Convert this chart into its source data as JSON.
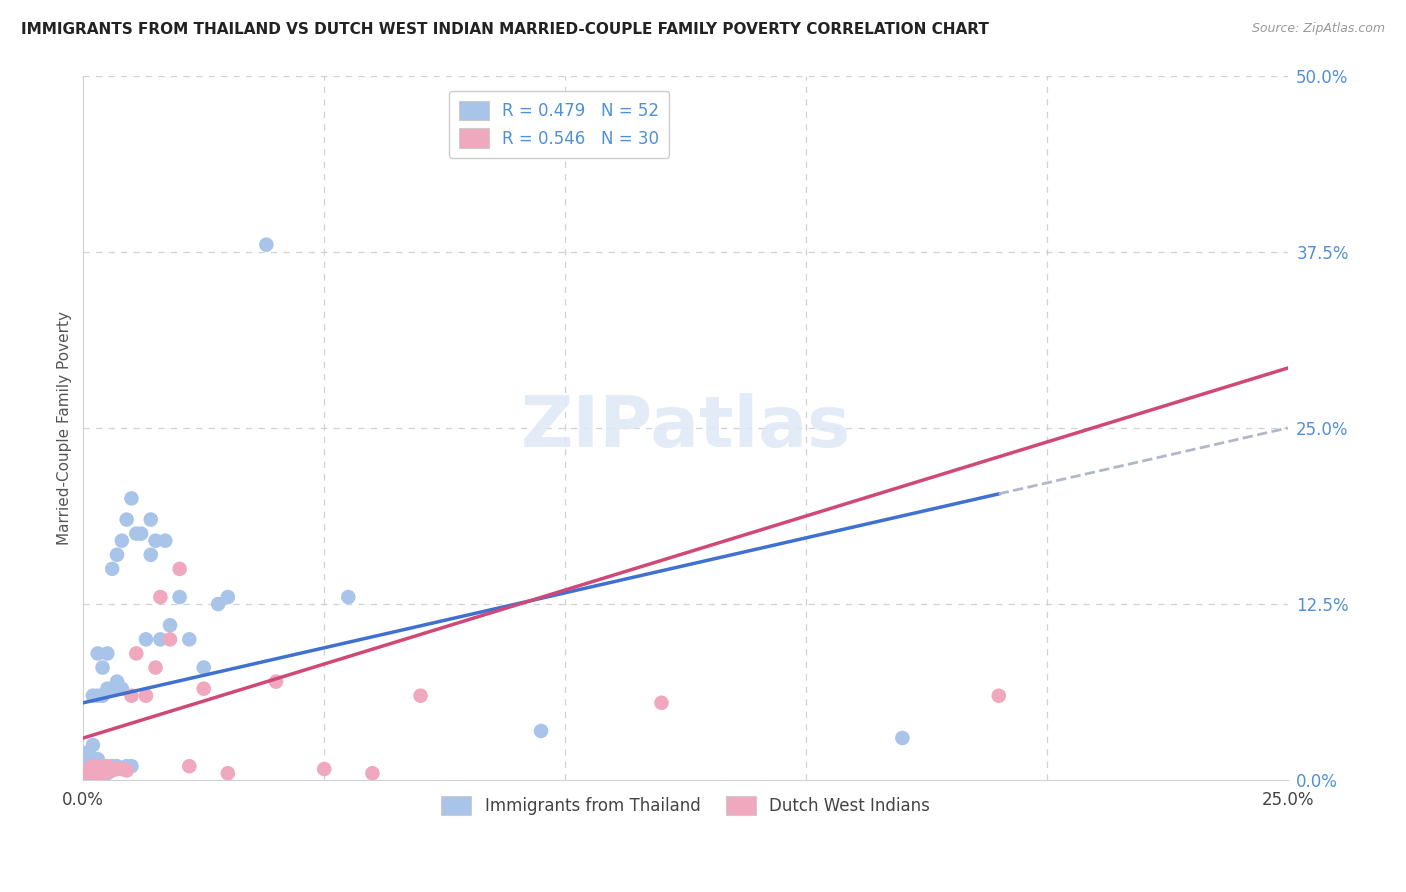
{
  "title": "IMMIGRANTS FROM THAILAND VS DUTCH WEST INDIAN MARRIED-COUPLE FAMILY POVERTY CORRELATION CHART",
  "source": "Source: ZipAtlas.com",
  "ylabel": "Married-Couple Family Poverty",
  "xlim": [
    0.0,
    0.25
  ],
  "ylim": [
    0.0,
    0.5
  ],
  "xticks": [
    0.0,
    0.05,
    0.1,
    0.15,
    0.2,
    0.25
  ],
  "xtick_labels": [
    "0.0%",
    "",
    "",
    "",
    "",
    "25.0%"
  ],
  "ytick_labels_right": [
    "50.0%",
    "37.5%",
    "25.0%",
    "12.5%",
    "0.0%"
  ],
  "yticks_right": [
    0.5,
    0.375,
    0.25,
    0.125,
    0.0
  ],
  "blue_color": "#a8c4e8",
  "pink_color": "#f0a8be",
  "blue_line_color": "#4070d0",
  "pink_line_color": "#d04878",
  "blue_dash_color": "#b0b8c8",
  "background_color": "#ffffff",
  "grid_color": "#d0d0d8",
  "right_axis_color": "#5090d8",
  "thailand_x": [
    0.001,
    0.001,
    0.001,
    0.001,
    0.002,
    0.002,
    0.002,
    0.002,
    0.002,
    0.003,
    0.003,
    0.003,
    0.003,
    0.003,
    0.004,
    0.004,
    0.004,
    0.004,
    0.005,
    0.005,
    0.005,
    0.005,
    0.006,
    0.006,
    0.006,
    0.007,
    0.007,
    0.007,
    0.008,
    0.008,
    0.009,
    0.009,
    0.01,
    0.01,
    0.011,
    0.012,
    0.013,
    0.014,
    0.014,
    0.015,
    0.016,
    0.017,
    0.018,
    0.02,
    0.022,
    0.025,
    0.028,
    0.03,
    0.038,
    0.055,
    0.095,
    0.17
  ],
  "thailand_y": [
    0.005,
    0.01,
    0.015,
    0.02,
    0.005,
    0.008,
    0.012,
    0.025,
    0.06,
    0.005,
    0.01,
    0.015,
    0.06,
    0.09,
    0.005,
    0.01,
    0.06,
    0.08,
    0.005,
    0.01,
    0.065,
    0.09,
    0.01,
    0.065,
    0.15,
    0.01,
    0.07,
    0.16,
    0.065,
    0.17,
    0.01,
    0.185,
    0.01,
    0.2,
    0.175,
    0.175,
    0.1,
    0.16,
    0.185,
    0.17,
    0.1,
    0.17,
    0.11,
    0.13,
    0.1,
    0.08,
    0.125,
    0.13,
    0.38,
    0.13,
    0.035,
    0.03
  ],
  "dutch_x": [
    0.001,
    0.001,
    0.002,
    0.002,
    0.003,
    0.003,
    0.004,
    0.004,
    0.005,
    0.005,
    0.006,
    0.007,
    0.008,
    0.009,
    0.01,
    0.011,
    0.013,
    0.015,
    0.016,
    0.018,
    0.02,
    0.022,
    0.025,
    0.03,
    0.04,
    0.05,
    0.06,
    0.07,
    0.12,
    0.19
  ],
  "dutch_y": [
    0.004,
    0.008,
    0.005,
    0.01,
    0.005,
    0.01,
    0.005,
    0.008,
    0.006,
    0.01,
    0.007,
    0.008,
    0.008,
    0.007,
    0.06,
    0.09,
    0.06,
    0.08,
    0.13,
    0.1,
    0.15,
    0.01,
    0.065,
    0.005,
    0.07,
    0.008,
    0.005,
    0.06,
    0.055,
    0.06
  ],
  "blue_intercept": 0.055,
  "blue_slope": 0.78,
  "pink_intercept": 0.03,
  "pink_slope": 1.05,
  "blue_line_end_solid": 0.19,
  "watermark_text": "ZIPatlas",
  "legend1_r": "R = 0.479",
  "legend1_n": "N = 52",
  "legend2_r": "R = 0.546",
  "legend2_n": "N = 30",
  "legend_label1": "Immigrants from Thailand",
  "legend_label2": "Dutch West Indians"
}
